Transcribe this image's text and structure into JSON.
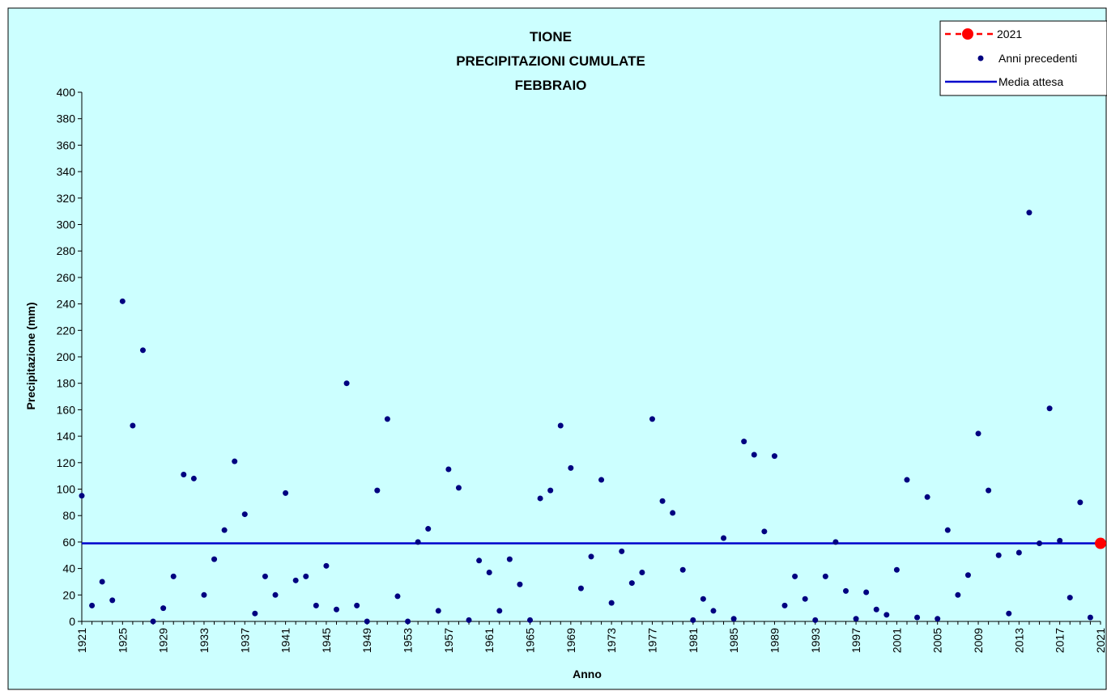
{
  "chart_data": {
    "type": "scatter",
    "title": [
      "TIONE",
      "PRECIPITAZIONI CUMULATE",
      "FEBBRAIO"
    ],
    "xlabel": "Anno",
    "ylabel": "Precipitazione (mm)",
    "xlim": [
      1921,
      2021
    ],
    "ylim": [
      0,
      400
    ],
    "ytick_step": 20,
    "xticks": [
      1921,
      1925,
      1929,
      1933,
      1937,
      1941,
      1945,
      1949,
      1953,
      1957,
      1961,
      1965,
      1969,
      1973,
      1977,
      1981,
      1985,
      1989,
      1993,
      1997,
      2001,
      2005,
      2009,
      2013,
      2017,
      2021
    ],
    "background_color": "#ccffff",
    "grid": false,
    "legend_position": "top-right",
    "legend": [
      "2021",
      "Anni precedenti",
      "Media attesa"
    ],
    "series": [
      {
        "name": "Anni precedenti",
        "color": "#000080",
        "x": [
          1921,
          1922,
          1923,
          1924,
          1925,
          1926,
          1927,
          1928,
          1929,
          1930,
          1931,
          1932,
          1933,
          1934,
          1935,
          1936,
          1937,
          1938,
          1939,
          1940,
          1941,
          1942,
          1943,
          1944,
          1945,
          1946,
          1947,
          1948,
          1949,
          1950,
          1951,
          1952,
          1953,
          1954,
          1955,
          1956,
          1957,
          1958,
          1959,
          1960,
          1961,
          1962,
          1963,
          1964,
          1965,
          1966,
          1967,
          1968,
          1969,
          1970,
          1971,
          1972,
          1973,
          1974,
          1975,
          1976,
          1977,
          1978,
          1979,
          1980,
          1981,
          1982,
          1983,
          1984,
          1985,
          1986,
          1987,
          1988,
          1989,
          1990,
          1991,
          1992,
          1993,
          1994,
          1995,
          1996,
          1997,
          1998,
          1999,
          2000,
          2001,
          2002,
          2003,
          2004,
          2005,
          2006,
          2007,
          2008,
          2009,
          2010,
          2011,
          2012,
          2013,
          2014,
          2015,
          2016,
          2017,
          2018,
          2019,
          2020
        ],
        "y": [
          95,
          12,
          30,
          16,
          242,
          148,
          205,
          0,
          10,
          34,
          111,
          108,
          20,
          47,
          69,
          121,
          81,
          6,
          34,
          20,
          97,
          31,
          34,
          12,
          42,
          9,
          180,
          12,
          0,
          99,
          153,
          19,
          0,
          60,
          70,
          8,
          115,
          101,
          1,
          46,
          37,
          8,
          47,
          28,
          1,
          93,
          99,
          148,
          116,
          25,
          49,
          107,
          14,
          53,
          29,
          37,
          153,
          91,
          82,
          39,
          1,
          17,
          8,
          63,
          2,
          136,
          126,
          68,
          125,
          12,
          34,
          17,
          1,
          34,
          60,
          23,
          2,
          22,
          9,
          5,
          39,
          107,
          3,
          94,
          2,
          69,
          20,
          35,
          142,
          99,
          50,
          6,
          52,
          309,
          59,
          161,
          61,
          18,
          90,
          3
        ]
      },
      {
        "name": "2021",
        "color": "#ff0000",
        "x": [
          2021
        ],
        "y": [
          59
        ]
      }
    ],
    "reference_line": {
      "name": "Media attesa",
      "y": 59,
      "color": "#0000cc"
    }
  }
}
